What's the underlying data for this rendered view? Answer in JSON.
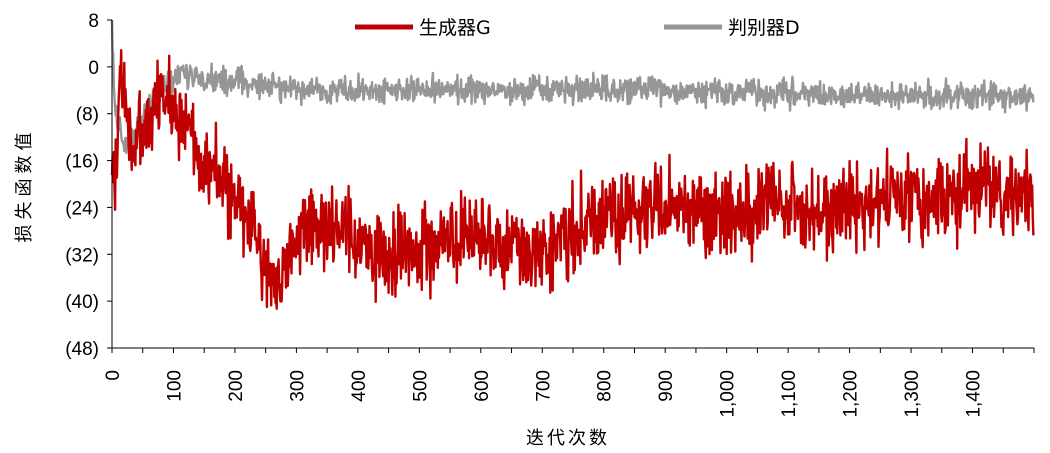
{
  "chart_data": {
    "type": "line",
    "title": "",
    "xlabel": "迭代次数",
    "ylabel": "损失函数值",
    "xlim": [
      0,
      1500
    ],
    "ylim": [
      -48,
      8
    ],
    "y_ticks": [
      8,
      0,
      -8,
      -16,
      -24,
      -32,
      -40,
      -48
    ],
    "y_tick_labels": [
      "8",
      "0",
      "(8)",
      "(16)",
      "(24)",
      "(32)",
      "(40)",
      "(48)"
    ],
    "x_ticks": [
      0,
      100,
      200,
      300,
      400,
      500,
      600,
      700,
      800,
      900,
      1000,
      1100,
      1200,
      1300,
      1400
    ],
    "x_tick_labels": [
      "0",
      "100",
      "200",
      "300",
      "400",
      "500",
      "600",
      "700",
      "800",
      "900",
      "1,000",
      "1,100",
      "1,200",
      "1,300",
      "1,400"
    ],
    "grid": false,
    "legend_position": "top",
    "series": [
      {
        "name": "生成器G",
        "color": "#c00000",
        "noise_amplitude": 3.5,
        "points": [
          [
            0,
            -15
          ],
          [
            5,
            -22
          ],
          [
            12,
            0
          ],
          [
            20,
            -6
          ],
          [
            35,
            -14
          ],
          [
            60,
            -10
          ],
          [
            80,
            -5
          ],
          [
            100,
            -6
          ],
          [
            130,
            -12
          ],
          [
            160,
            -17
          ],
          [
            200,
            -23
          ],
          [
            230,
            -28
          ],
          [
            260,
            -36
          ],
          [
            280,
            -35
          ],
          [
            300,
            -29
          ],
          [
            330,
            -27
          ],
          [
            360,
            -28
          ],
          [
            400,
            -30
          ],
          [
            440,
            -33
          ],
          [
            470,
            -31
          ],
          [
            500,
            -31
          ],
          [
            550,
            -30
          ],
          [
            600,
            -30
          ],
          [
            650,
            -31
          ],
          [
            700,
            -31
          ],
          [
            750,
            -28
          ],
          [
            800,
            -26
          ],
          [
            850,
            -25
          ],
          [
            900,
            -24
          ],
          [
            950,
            -24
          ],
          [
            1000,
            -25
          ],
          [
            1050,
            -24
          ],
          [
            1100,
            -24
          ],
          [
            1150,
            -25
          ],
          [
            1200,
            -24
          ],
          [
            1250,
            -23
          ],
          [
            1300,
            -22
          ],
          [
            1350,
            -22
          ],
          [
            1400,
            -21
          ],
          [
            1450,
            -22
          ],
          [
            1499,
            -22
          ]
        ]
      },
      {
        "name": "判别器D",
        "color": "#969696",
        "noise_amplitude": 1.1,
        "points": [
          [
            0,
            8
          ],
          [
            4,
            -6
          ],
          [
            10,
            -10
          ],
          [
            20,
            -13
          ],
          [
            35,
            -12
          ],
          [
            50,
            -9
          ],
          [
            70,
            -5
          ],
          [
            100,
            -2
          ],
          [
            130,
            -1.5
          ],
          [
            160,
            -2
          ],
          [
            200,
            -2.5
          ],
          [
            250,
            -3
          ],
          [
            300,
            -4
          ],
          [
            400,
            -4
          ],
          [
            500,
            -4
          ],
          [
            600,
            -4
          ],
          [
            700,
            -4
          ],
          [
            800,
            -4
          ],
          [
            900,
            -4
          ],
          [
            1000,
            -4.5
          ],
          [
            1100,
            -4.5
          ],
          [
            1200,
            -5
          ],
          [
            1300,
            -5
          ],
          [
            1400,
            -5
          ],
          [
            1499,
            -5
          ]
        ]
      }
    ]
  }
}
